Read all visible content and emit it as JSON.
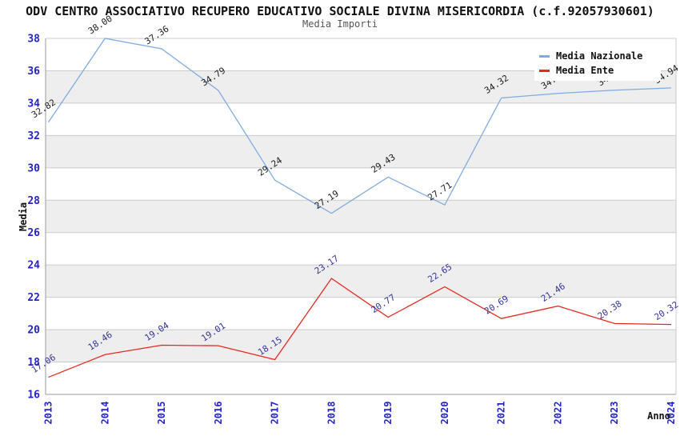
{
  "chart_data": {
    "type": "line",
    "title": "ODV CENTRO ASSOCIATIVO RECUPERO EDUCATIVO SOCIALE DIVINA MISERICORDIA (c.f.92057930601)",
    "subtitle": "Media Importi",
    "xlabel": "Anno",
    "ylabel": "Media",
    "categories": [
      "2013",
      "2014",
      "2015",
      "2016",
      "2017",
      "2018",
      "2019",
      "2020",
      "2021",
      "2022",
      "2023",
      "2024"
    ],
    "series": [
      {
        "name": "Media Nazionale",
        "color": "#7fabdf",
        "label_color": "#1a1a1a",
        "values": [
          32.82,
          38.0,
          37.36,
          34.79,
          29.24,
          27.19,
          29.43,
          27.71,
          34.32,
          34.6,
          34.8,
          34.94
        ],
        "note": "2022 and 2023 point labels are partially hidden behind the legend box; their values are estimated from the line position"
      },
      {
        "name": "Media Ente",
        "color": "#df2b20",
        "label_color": "#333399",
        "values": [
          17.06,
          18.46,
          19.04,
          19.01,
          18.15,
          23.17,
          20.77,
          22.65,
          20.69,
          21.46,
          20.38,
          20.32
        ]
      }
    ],
    "ylim": [
      16,
      38
    ],
    "ytick_step": 2,
    "grid": true,
    "background_stripes": [
      "#ffffff",
      "#eeeeee"
    ],
    "gridline_color": "#cccccc",
    "axis_color": "#999999",
    "tick_label_color": "#2323cc",
    "legend_position": "top-right"
  }
}
